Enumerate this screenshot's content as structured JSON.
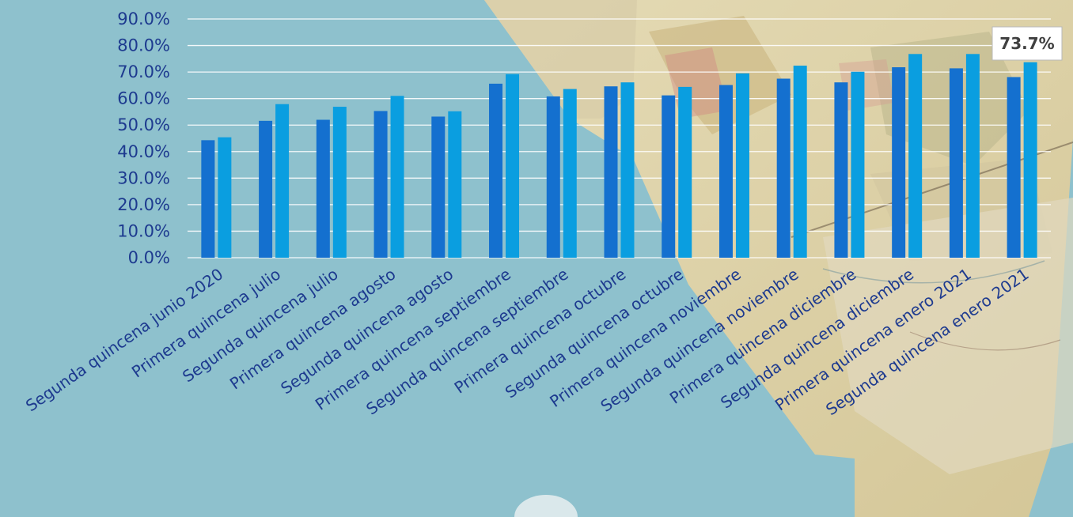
{
  "chart_data": {
    "type": "bar",
    "title": "",
    "xlabel": "",
    "ylabel": "",
    "ylim": [
      0,
      90
    ],
    "yticks": [
      "0.0%",
      "10.0%",
      "20.0%",
      "30.0%",
      "40.0%",
      "50.0%",
      "60.0%",
      "70.0%",
      "80.0%",
      "90.0%"
    ],
    "grid": true,
    "categories": [
      "Segunda quincena junio 2020",
      "Primera quincena julio",
      "Segunda quincena julio",
      "Primera quincena agosto",
      "Segunda quincena agosto",
      "Primera quincena septiembre",
      "Segunda quincena septiembre",
      "Primera quincena octubre",
      "Segunda quincena octubre",
      "Primera quincena noviembre",
      "Segunda quincena noviembre",
      "Primera quincena diciembre",
      "Segunda quincena diciembre",
      "Primera quincena enero 2021",
      "Segunda quincena enero 2021"
    ],
    "series": [
      {
        "color": "#1470cf",
        "values": [
          44.3,
          51.6,
          52.0,
          55.3,
          53.2,
          65.6,
          60.8,
          64.6,
          61.2,
          65.1,
          67.5,
          66.1,
          71.8,
          71.4,
          68.1
        ]
      },
      {
        "color": "#0a9ee0",
        "values": [
          45.4,
          57.9,
          56.9,
          61.0,
          55.2,
          69.2,
          63.6,
          66.1,
          64.4,
          69.5,
          72.4,
          70.1,
          76.8,
          76.8,
          73.7
        ]
      }
    ],
    "annotation": {
      "text": "73.7%"
    }
  }
}
